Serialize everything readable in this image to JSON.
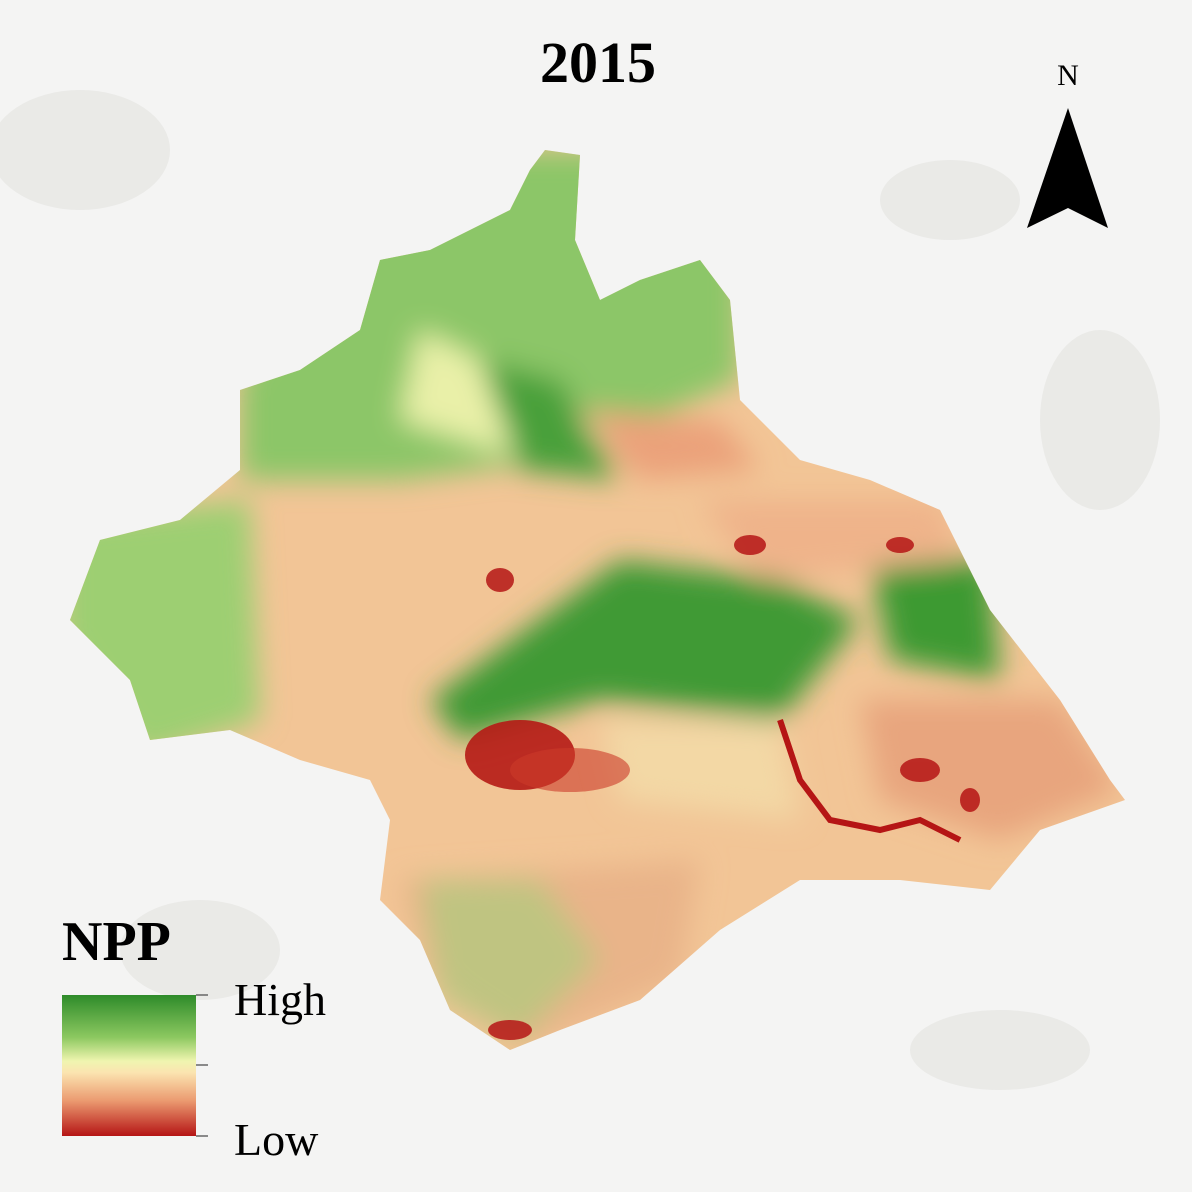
{
  "map": {
    "title": "2015",
    "north_label": "N",
    "legend": {
      "title": "NPP",
      "high": "High",
      "low": "Low"
    }
  }
}
